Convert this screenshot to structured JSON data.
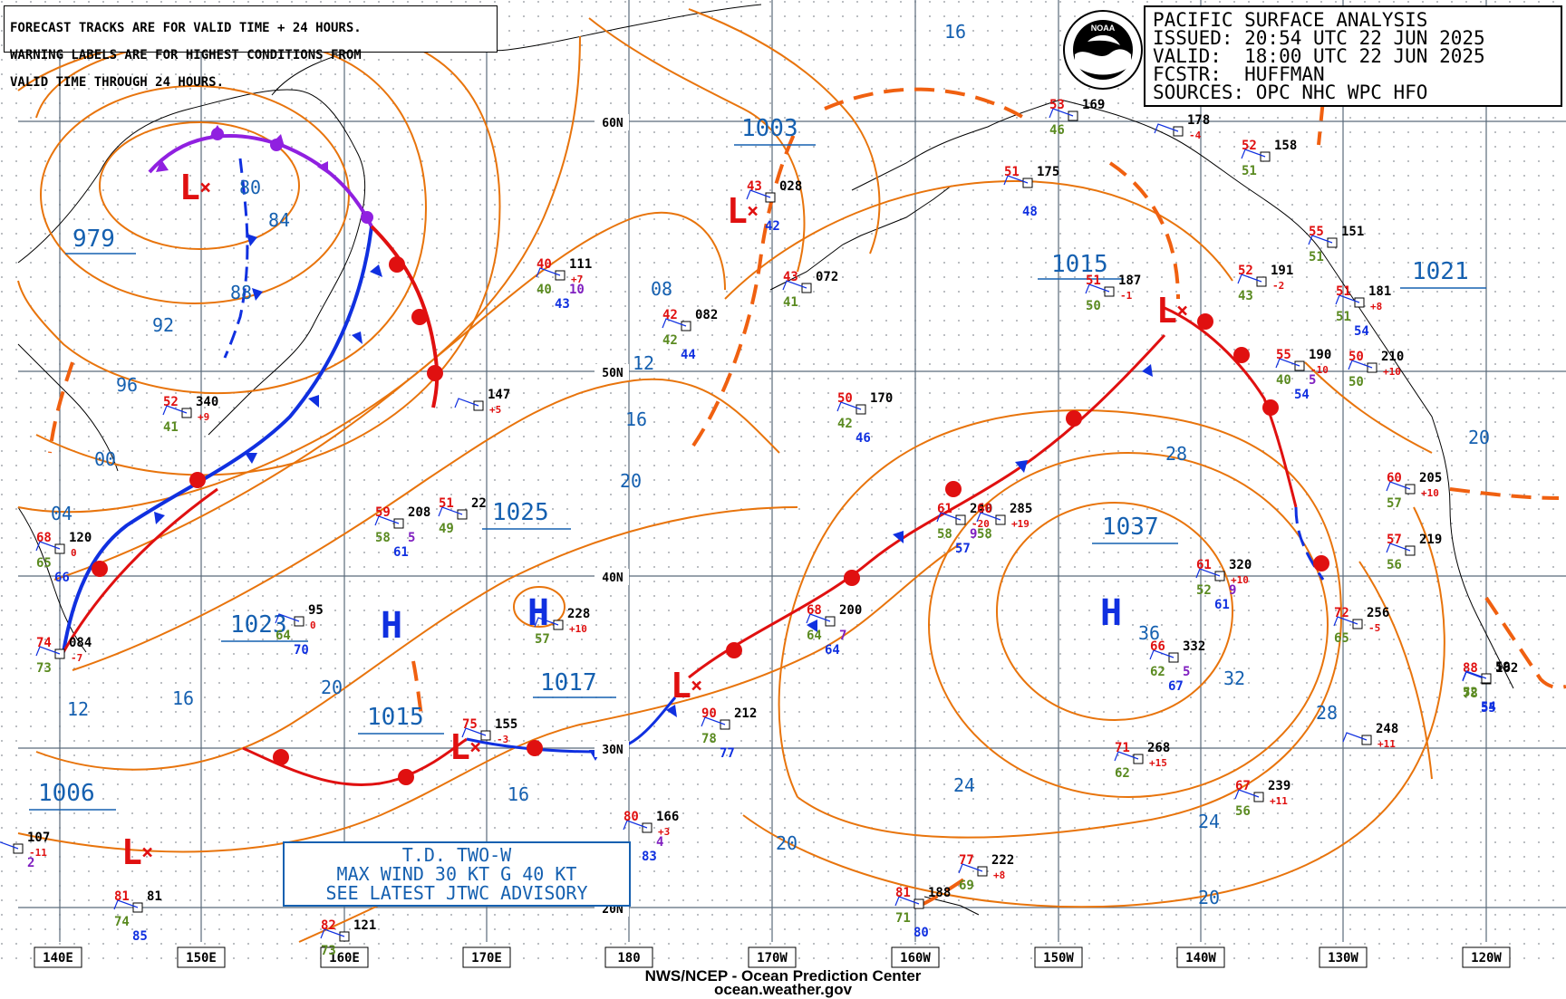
{
  "warning_box": {
    "lines": [
      "FORECAST TRACKS ARE FOR VALID TIME + 24 HOURS.",
      "WARNING LABELS ARE FOR HIGHEST CONDITIONS FROM",
      "VALID TIME THROUGH 24 HOURS."
    ]
  },
  "header": {
    "title": "PACIFIC SURFACE ANALYSIS",
    "issued": "ISSUED: 20:54 UTC 22 JUN 2025",
    "valid": "VALID:  18:00 UTC 22 JUN 2025",
    "forecaster": "FCSTR:  HUFFMAN",
    "sources": "SOURCES: OPC NHC WPC HFO",
    "logo_text": "NOAA"
  },
  "tropical_box": {
    "line1": "T.D. TWO-W",
    "line2": "MAX WIND 30 KT G 40 KT",
    "line3": "SEE LATEST JTWC ADVISORY"
  },
  "footer": {
    "center": "NWS/NCEP - Ocean Prediction Center",
    "site": "ocean.weather.gov"
  },
  "longitude_labels": [
    "140E",
    "150E",
    "160E",
    "170E",
    "180",
    "170W",
    "160W",
    "150W",
    "140W",
    "130W",
    "120W"
  ],
  "latitude_labels": [
    "60N",
    "50N",
    "40N",
    "30N",
    "20N"
  ],
  "pressure_centers": [
    {
      "type": "L",
      "value": "979"
    },
    {
      "type": "L",
      "value": "1003"
    },
    {
      "type": "L",
      "value": "1015"
    },
    {
      "type": "H",
      "value": "1025"
    },
    {
      "type": "H",
      "value": "1017"
    },
    {
      "type": "L",
      "value": "1015"
    },
    {
      "type": "H",
      "value": "1023"
    },
    {
      "type": "H",
      "value": "1037"
    },
    {
      "type": "L",
      "value": "1006"
    },
    {
      "type": "H",
      "value": "1021"
    }
  ],
  "isobar_labels": [
    "80",
    "84",
    "88",
    "92",
    "96",
    "00",
    "04",
    "08",
    "12",
    "16",
    "20",
    "12",
    "16",
    "20",
    "16",
    "20",
    "24",
    "28",
    "32",
    "36",
    "28",
    "24",
    "20",
    "16",
    "20"
  ],
  "stations": [
    {
      "id": "340",
      "temp": "52",
      "dew": "41",
      "tend": "+9"
    },
    {
      "id": "111",
      "temp": "40",
      "dew": "40",
      "vis": "10",
      "wind": "43",
      "tend": "+7"
    },
    {
      "id": "082",
      "temp": "42",
      "dew": "42",
      "wind": "44"
    },
    {
      "id": "028",
      "temp": "43",
      "wind": "42"
    },
    {
      "id": "072",
      "temp": "43",
      "dew": "41"
    },
    {
      "id": "147",
      "tend": "+5"
    },
    {
      "id": "208",
      "temp": "59",
      "dew": "58",
      "vis": "5",
      "wind": "61"
    },
    {
      "id": "22",
      "temp": "51",
      "dew": "49"
    },
    {
      "id": "120",
      "temp": "68",
      "dew": "65",
      "wind": "66",
      "tend": "0"
    },
    {
      "id": "084",
      "temp": "74",
      "dew": "73",
      "tend": "-7"
    },
    {
      "id": "95",
      "dew": "64",
      "wind": "70",
      "tend": "0"
    },
    {
      "id": "228",
      "dew": "57",
      "tend": "+10"
    },
    {
      "id": "155",
      "temp": "75",
      "tend": "-3"
    },
    {
      "id": "170",
      "temp": "50",
      "dew": "42",
      "wind": "46"
    },
    {
      "id": "200",
      "temp": "68",
      "dew": "64",
      "vis": "7",
      "wind": "64"
    },
    {
      "id": "212",
      "temp": "90",
      "dew": "78",
      "wind": "77"
    },
    {
      "id": "166",
      "temp": "80",
      "vis": "4",
      "wind": "83",
      "tend": "+3"
    },
    {
      "id": "240",
      "temp": "61",
      "dew": "58",
      "vis": "9",
      "wind": "57",
      "tend": "-20"
    },
    {
      "id": "285",
      "temp": "60",
      "dew": "58",
      "tend": "+19"
    },
    {
      "id": "169",
      "temp": "53",
      "dew": "46"
    },
    {
      "id": "175",
      "temp": "51",
      "wind": "48"
    },
    {
      "id": "187",
      "temp": "51",
      "dew": "50",
      "tend": "-1"
    },
    {
      "id": "178",
      "tend": "-4"
    },
    {
      "id": "158",
      "temp": "52",
      "dew": "51"
    },
    {
      "id": "151",
      "temp": "55",
      "dew": "51"
    },
    {
      "id": "191",
      "temp": "52",
      "dew": "43",
      "tend": "-2"
    },
    {
      "id": "181",
      "temp": "51",
      "dew": "51",
      "wind": "54",
      "tend": "+8"
    },
    {
      "id": "190",
      "temp": "55",
      "dew": "40",
      "vis": "5",
      "wind": "54",
      "tend": "-10"
    },
    {
      "id": "210",
      "temp": "50",
      "dew": "50",
      "tend": "+10"
    },
    {
      "id": "205",
      "temp": "60",
      "dew": "57",
      "tend": "+10"
    },
    {
      "id": "219",
      "temp": "57",
      "dew": "56"
    },
    {
      "id": "320",
      "temp": "61",
      "dew": "52",
      "vis": "9",
      "wind": "61",
      "tend": "+10"
    },
    {
      "id": "332",
      "temp": "66",
      "dew": "62",
      "vis": "5",
      "wind": "67"
    },
    {
      "id": "256",
      "temp": "72",
      "dew": "65",
      "tend": "-5"
    },
    {
      "id": "162",
      "temp": "88",
      "dew": "78",
      "wind": "55"
    },
    {
      "id": "59",
      "dew": "52",
      "wind": "54"
    },
    {
      "id": "248",
      "tend": "+11"
    },
    {
      "id": "268",
      "temp": "71",
      "dew": "62",
      "tend": "+15"
    },
    {
      "id": "239",
      "temp": "67",
      "dew": "56",
      "tend": "+11"
    },
    {
      "id": "222",
      "temp": "77",
      "dew": "69",
      "tend": "+8"
    },
    {
      "id": "188",
      "temp": "81",
      "dew": "71",
      "wind": "80"
    },
    {
      "id": "107",
      "vis": "2",
      "tend": "-11"
    },
    {
      "id": "121",
      "temp": "82",
      "dew": "73"
    },
    {
      "id": "81",
      "temp": "81",
      "dew": "74",
      "wind": "85"
    }
  ],
  "colors": {
    "isobar": "#e8740c",
    "cold_front": "#1030e0",
    "warm_front": "#e01010",
    "occluded_front": "#9020e0",
    "trough": "#f06010",
    "label": "#1560b0",
    "grid": "#5a6a7a",
    "coast": "#000000",
    "temp": "#e01010",
    "dew": "#5a8a20",
    "wind": "#1030e0",
    "vis": "#8020c0"
  }
}
